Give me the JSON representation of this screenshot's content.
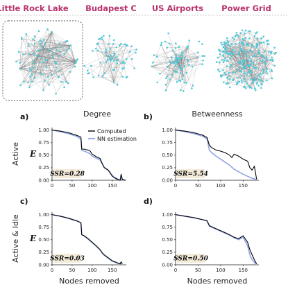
{
  "networks": [
    {
      "name": "Little Rock Lake"
    },
    {
      "name": "Budapest C"
    },
    {
      "name": "US Airports"
    },
    {
      "name": "Power Grid"
    }
  ],
  "colors": {
    "title": "#b8326e",
    "computed": "#000000",
    "nn": "#8fa5e6",
    "node": "#4cc8d8",
    "ssr_bg": "#f3ead8"
  },
  "column_headers": [
    "Degree",
    "Betweenness"
  ],
  "row_headers": [
    "Active",
    "Active & Idle"
  ],
  "legend": {
    "computed": "Computed",
    "nn": "NN estimation"
  },
  "axis": {
    "ylabel": "E",
    "xlabel": "Nodes removed"
  },
  "chart_data": [
    {
      "type": "line",
      "panel": "a)",
      "xticks": [
        "0",
        "50",
        "100",
        "150"
      ],
      "yticks": [
        "0.00",
        "0.25",
        "0.50",
        "0.75",
        "1.00"
      ],
      "xlim": [
        0,
        185
      ],
      "ylim": [
        0,
        1.05
      ],
      "ssr": "SSR=0.28",
      "series": [
        {
          "name": "Computed",
          "x": [
            0,
            20,
            40,
            60,
            72,
            74,
            80,
            90,
            95,
            100,
            110,
            120,
            125,
            130,
            140,
            150,
            155,
            160,
            165,
            170,
            172,
            175,
            178,
            182
          ],
          "y": [
            1.0,
            0.98,
            0.95,
            0.9,
            0.86,
            0.62,
            0.62,
            0.6,
            0.58,
            0.52,
            0.47,
            0.43,
            0.33,
            0.25,
            0.2,
            0.08,
            0.05,
            0.03,
            0.01,
            0.0,
            0.12,
            0.02,
            0.01,
            0.0
          ]
        },
        {
          "name": "NN estimation",
          "x": [
            0,
            20,
            40,
            60,
            72,
            74,
            80,
            90,
            95,
            100,
            110,
            120,
            125,
            130,
            140,
            150,
            155,
            160,
            165,
            170,
            172,
            175,
            178,
            182
          ],
          "y": [
            1.0,
            0.97,
            0.93,
            0.88,
            0.82,
            0.6,
            0.58,
            0.55,
            0.52,
            0.48,
            0.44,
            0.4,
            0.33,
            0.26,
            0.2,
            0.1,
            0.06,
            0.04,
            0.02,
            0.01,
            0.1,
            0.02,
            0.01,
            0.0
          ]
        }
      ]
    },
    {
      "type": "line",
      "panel": "b)",
      "xticks": [
        "0",
        "50",
        "100",
        "150"
      ],
      "yticks": [
        "0.00",
        "0.25",
        "0.50",
        "0.75",
        "1.00"
      ],
      "xlim": [
        0,
        185
      ],
      "ylim": [
        0,
        1.05
      ],
      "ssr": "SSR=5.54",
      "series": [
        {
          "name": "Computed",
          "x": [
            0,
            20,
            40,
            60,
            70,
            75,
            80,
            90,
            100,
            110,
            120,
            125,
            130,
            140,
            150,
            160,
            165,
            170,
            175,
            180
          ],
          "y": [
            1.0,
            0.98,
            0.95,
            0.9,
            0.85,
            0.7,
            0.65,
            0.6,
            0.58,
            0.55,
            0.5,
            0.45,
            0.52,
            0.48,
            0.42,
            0.38,
            0.25,
            0.2,
            0.28,
            0.02
          ]
        },
        {
          "name": "NN estimation",
          "x": [
            0,
            20,
            40,
            60,
            70,
            75,
            80,
            90,
            100,
            110,
            120,
            130,
            140,
            150,
            160,
            165,
            170,
            175,
            180
          ],
          "y": [
            1.0,
            0.97,
            0.93,
            0.88,
            0.82,
            0.6,
            0.55,
            0.48,
            0.42,
            0.36,
            0.3,
            0.22,
            0.17,
            0.12,
            0.08,
            0.06,
            0.04,
            0.03,
            0.01
          ]
        }
      ]
    },
    {
      "type": "line",
      "panel": "c)",
      "xticks": [
        "0",
        "50",
        "100",
        "150"
      ],
      "yticks": [
        "0.00",
        "0.25",
        "0.50",
        "0.75",
        "1.00"
      ],
      "xlim": [
        0,
        185
      ],
      "ylim": [
        0,
        1.05
      ],
      "ssr": "SSR=0.03",
      "series": [
        {
          "name": "Computed",
          "x": [
            0,
            20,
            40,
            60,
            72,
            74,
            80,
            90,
            100,
            110,
            120,
            125,
            130,
            140,
            150,
            160,
            165,
            170,
            172,
            175
          ],
          "y": [
            1.0,
            0.97,
            0.93,
            0.88,
            0.84,
            0.6,
            0.58,
            0.52,
            0.45,
            0.38,
            0.3,
            0.24,
            0.2,
            0.14,
            0.08,
            0.05,
            0.03,
            0.02,
            0.06,
            0.02
          ]
        },
        {
          "name": "NN estimation",
          "x": [
            0,
            20,
            40,
            60,
            72,
            74,
            80,
            90,
            100,
            110,
            120,
            125,
            130,
            140,
            150,
            160,
            165,
            170,
            172,
            175
          ],
          "y": [
            1.0,
            0.97,
            0.93,
            0.88,
            0.84,
            0.6,
            0.57,
            0.51,
            0.44,
            0.37,
            0.29,
            0.23,
            0.19,
            0.13,
            0.07,
            0.04,
            0.03,
            0.02,
            0.05,
            0.02
          ]
        }
      ]
    },
    {
      "type": "line",
      "panel": "d)",
      "xticks": [
        "0",
        "50",
        "100",
        "150"
      ],
      "yticks": [
        "0.00",
        "0.25",
        "0.50",
        "0.75",
        "1.00"
      ],
      "xlim": [
        0,
        185
      ],
      "ylim": [
        0,
        1.05
      ],
      "ssr": "SSR=0.50",
      "series": [
        {
          "name": "Computed",
          "x": [
            0,
            20,
            40,
            60,
            70,
            75,
            80,
            90,
            100,
            110,
            120,
            130,
            140,
            150,
            160,
            165,
            170,
            175,
            180
          ],
          "y": [
            1.0,
            0.97,
            0.94,
            0.9,
            0.88,
            0.78,
            0.76,
            0.72,
            0.68,
            0.64,
            0.6,
            0.55,
            0.52,
            0.58,
            0.45,
            0.3,
            0.2,
            0.1,
            0.02
          ]
        },
        {
          "name": "NN estimation",
          "x": [
            0,
            20,
            40,
            60,
            70,
            75,
            80,
            90,
            100,
            110,
            120,
            130,
            140,
            150,
            160,
            165,
            170,
            175,
            180
          ],
          "y": [
            1.0,
            0.97,
            0.94,
            0.9,
            0.87,
            0.77,
            0.75,
            0.71,
            0.67,
            0.63,
            0.59,
            0.54,
            0.5,
            0.55,
            0.38,
            0.2,
            0.1,
            0.05,
            0.0
          ]
        }
      ]
    }
  ]
}
